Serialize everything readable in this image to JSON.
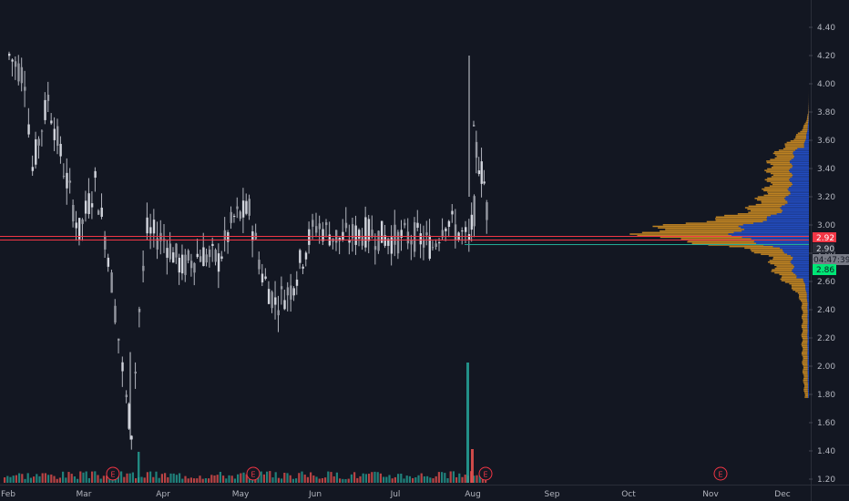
{
  "chart_data": {
    "type": "candlestick",
    "price_axis": {
      "ticks": [
        "1.20",
        "1.40",
        "1.60",
        "1.80",
        "2.00",
        "2.20",
        "2.40",
        "2.60",
        "2.80",
        "3.00",
        "3.20",
        "3.40",
        "3.60",
        "3.80",
        "4.00",
        "4.20",
        "4.40"
      ],
      "ylim": [
        1.15,
        4.52
      ]
    },
    "time_axis": {
      "labels": [
        "Feb",
        "Mar",
        "Apr",
        "May",
        "Jun",
        "Jul",
        "Aug",
        "Sep",
        "Oct",
        "Nov",
        "Dec"
      ]
    },
    "price_labels": {
      "red_level": "2.92",
      "grey_level": "2.90",
      "countdown": "04:47:39",
      "green_level": "2.86"
    },
    "earnings_markers": [
      "E",
      "E",
      "E",
      "E"
    ],
    "colors": {
      "background": "#131722",
      "candle": "#d1d4dc",
      "volume_up": "#26a69a",
      "volume_down": "#ef5350",
      "profile_up": "#2962ff",
      "profile_down": "#f5a623",
      "red_line": "#f23645",
      "green_line": "#22ab94"
    },
    "key_points": [
      {
        "date": "Feb 01",
        "close": 4.2
      },
      {
        "date": "Feb 07",
        "close": 4.05
      },
      {
        "date": "Feb 10",
        "close": 3.4
      },
      {
        "date": "Feb 16",
        "close": 3.9
      },
      {
        "date": "Feb 22",
        "close": 3.4
      },
      {
        "date": "Feb 28",
        "close": 2.95
      },
      {
        "date": "Mar 05",
        "close": 3.3
      },
      {
        "date": "Mar 10",
        "close": 2.8
      },
      {
        "date": "Mar 14",
        "close": 2.2
      },
      {
        "date": "Mar 17",
        "close": 1.75
      },
      {
        "date": "Mar 19",
        "close": 1.55
      },
      {
        "date": "Mar 22",
        "close": 2.4
      },
      {
        "date": "Mar 25",
        "close": 2.95
      },
      {
        "date": "Apr 01",
        "close": 2.9
      },
      {
        "date": "Apr 08",
        "close": 2.7
      },
      {
        "date": "Apr 15",
        "close": 2.8
      },
      {
        "date": "Apr 22",
        "close": 2.75
      },
      {
        "date": "Apr 28",
        "close": 3.05
      },
      {
        "date": "May 04",
        "close": 3.1
      },
      {
        "date": "May 09",
        "close": 2.65
      },
      {
        "date": "May 14",
        "close": 2.45
      },
      {
        "date": "May 20",
        "close": 2.55
      },
      {
        "date": "May 27",
        "close": 2.9
      },
      {
        "date": "Jun 01",
        "close": 3.0
      },
      {
        "date": "Jun 10",
        "close": 2.9
      },
      {
        "date": "Jun 20",
        "close": 2.95
      },
      {
        "date": "Jun 30",
        "close": 2.9
      },
      {
        "date": "Jul 08",
        "close": 2.92
      },
      {
        "date": "Jul 15",
        "close": 2.85
      },
      {
        "date": "Jul 20",
        "close": 3.05
      },
      {
        "date": "Jul 25",
        "close": 2.95
      },
      {
        "date": "Jul 29",
        "close": 2.88
      },
      {
        "date": "Jul 31",
        "close": 3.1
      },
      {
        "date": "Aug 01",
        "close": 3.6
      },
      {
        "date": "Aug 03",
        "close": 3.45
      },
      {
        "date": "Aug 05",
        "close": 3.3
      },
      {
        "date": "Aug 07",
        "close": 2.92
      }
    ],
    "volume_spikes": [
      {
        "date": "Mar 21",
        "value": 0.2
      },
      {
        "date": "Aug 01",
        "value": 1.0
      }
    ]
  }
}
